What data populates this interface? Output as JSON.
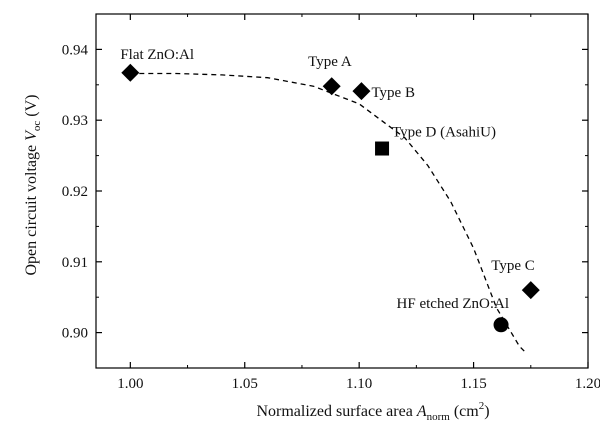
{
  "chart_data": {
    "type": "scatter",
    "title": "",
    "xlabel": {
      "main": "Normalized surface area ",
      "var": "A",
      "sub": "norm",
      "unit_pre": " (cm",
      "unit_sup": "2",
      "unit_post": ")"
    },
    "ylabel": {
      "main": "Open circuit voltage ",
      "var": "V",
      "sub": "oc",
      "unit": " (V)"
    },
    "xlim": [
      0.985,
      1.2
    ],
    "ylim": [
      0.895,
      0.945
    ],
    "xticks": [
      {
        "value": 1.0,
        "label": "1.00"
      },
      {
        "value": 1.05,
        "label": "1.05"
      },
      {
        "value": 1.1,
        "label": "1.10"
      },
      {
        "value": 1.15,
        "label": "1.15"
      },
      {
        "value": 1.2,
        "label": "1.20"
      }
    ],
    "yticks": [
      {
        "value": 0.9,
        "label": "0.90"
      },
      {
        "value": 0.91,
        "label": "0.91"
      },
      {
        "value": 0.92,
        "label": "0.92"
      },
      {
        "value": 0.93,
        "label": "0.93"
      },
      {
        "value": 0.94,
        "label": "0.94"
      }
    ],
    "grid": false,
    "legend": "none",
    "points": [
      {
        "name": "Flat ZnO:Al",
        "x": 1.0,
        "y": 0.9367,
        "marker": "diamond",
        "label_pos": "above-right"
      },
      {
        "name": "Type A",
        "x": 1.088,
        "y": 0.9348,
        "marker": "diamond",
        "label_pos": "above-left"
      },
      {
        "name": "Type B",
        "x": 1.101,
        "y": 0.9341,
        "marker": "diamond",
        "label_pos": "right"
      },
      {
        "name": "Type D (AsahiU)",
        "x": 1.11,
        "y": 0.926,
        "marker": "square",
        "label_pos": "above-right"
      },
      {
        "name": "Type C",
        "x": 1.175,
        "y": 0.906,
        "marker": "diamond",
        "label_pos": "above-left"
      },
      {
        "name": "HF etched ZnO:Al",
        "x": 1.162,
        "y": 0.9011,
        "marker": "circle",
        "label_pos": "above-left"
      }
    ],
    "fit_curve": {
      "style": "dashed",
      "x": [
        1.0,
        1.02,
        1.04,
        1.06,
        1.08,
        1.1,
        1.12,
        1.13,
        1.14,
        1.15,
        1.16,
        1.17,
        1.173
      ],
      "y": [
        0.9366,
        0.9366,
        0.9364,
        0.936,
        0.9348,
        0.9323,
        0.9275,
        0.9236,
        0.9185,
        0.9119,
        0.9035,
        0.8981,
        0.8971
      ]
    },
    "colors": {
      "marker": "#000000",
      "axis": "#000000",
      "curve": "#000000"
    }
  }
}
